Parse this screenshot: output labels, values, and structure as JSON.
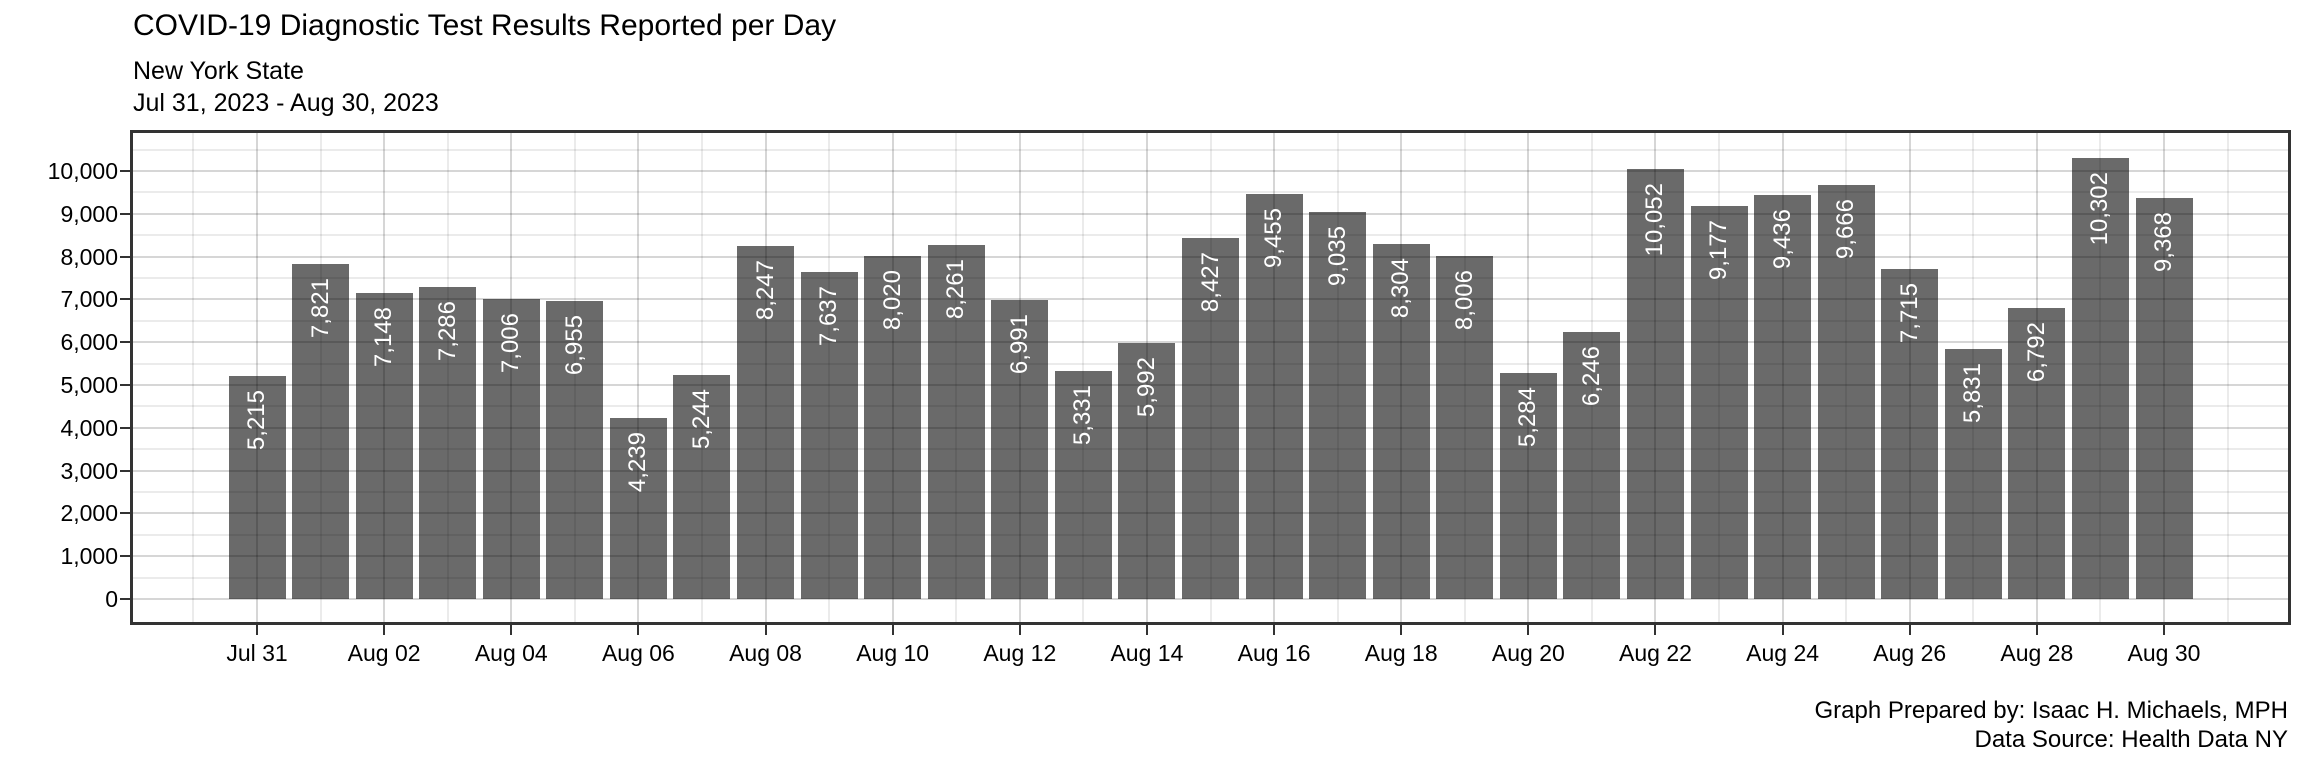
{
  "header": {
    "title": "COVID-19 Diagnostic Test Results Reported per Day",
    "subtitle": "New York State",
    "date_range": "Jul 31, 2023 - Aug 30, 2023"
  },
  "caption": {
    "prepared_by": "Graph Prepared by: Isaac H. Michaels, MPH",
    "data_source": "Data Source: Health Data NY"
  },
  "chart_data": {
    "type": "bar",
    "title": "COVID-19 Diagnostic Test Results Reported per Day",
    "subtitle": "New York State",
    "date_range_label": "Jul 31, 2023 - Aug 30, 2023",
    "xlabel": "",
    "ylabel": "",
    "categories": [
      "Jul 31",
      "Aug 01",
      "Aug 02",
      "Aug 03",
      "Aug 04",
      "Aug 05",
      "Aug 06",
      "Aug 07",
      "Aug 08",
      "Aug 09",
      "Aug 10",
      "Aug 11",
      "Aug 12",
      "Aug 13",
      "Aug 14",
      "Aug 15",
      "Aug 16",
      "Aug 17",
      "Aug 18",
      "Aug 19",
      "Aug 20",
      "Aug 21",
      "Aug 22",
      "Aug 23",
      "Aug 24",
      "Aug 25",
      "Aug 26",
      "Aug 27",
      "Aug 28",
      "Aug 29",
      "Aug 30"
    ],
    "values": [
      5215,
      7821,
      7148,
      7286,
      7006,
      6955,
      4239,
      5244,
      8247,
      7637,
      8020,
      8261,
      6991,
      5331,
      5992,
      8427,
      9455,
      9035,
      8304,
      8006,
      5284,
      6246,
      10052,
      9177,
      9436,
      9666,
      7715,
      5831,
      6792,
      10302,
      9368
    ],
    "bar_value_labels": [
      "5,215",
      "7,821",
      "7,148",
      "7,286",
      "7,006",
      "6,955",
      "4,239",
      "5,244",
      "8,247",
      "7,637",
      "8,020",
      "8,261",
      "6,991",
      "5,331",
      "5,992",
      "8,427",
      "9,455",
      "9,035",
      "8,304",
      "8,006",
      "5,284",
      "6,246",
      "10,052",
      "9,177",
      "9,436",
      "9,666",
      "7,715",
      "5,831",
      "6,792",
      "10,302",
      "9,368"
    ],
    "x_tick_labels": [
      "Jul 31",
      "Aug 02",
      "Aug 04",
      "Aug 06",
      "Aug 08",
      "Aug 10",
      "Aug 12",
      "Aug 14",
      "Aug 16",
      "Aug 18",
      "Aug 20",
      "Aug 22",
      "Aug 24",
      "Aug 26",
      "Aug 28",
      "Aug 30"
    ],
    "x_tick_day_indices": [
      0,
      2,
      4,
      6,
      8,
      10,
      12,
      14,
      16,
      18,
      20,
      22,
      24,
      26,
      28,
      30
    ],
    "y_ticks": [
      0,
      1000,
      2000,
      3000,
      4000,
      5000,
      6000,
      7000,
      8000,
      9000,
      10000
    ],
    "y_tick_labels": [
      "0",
      "1,000",
      "2,000",
      "3,000",
      "4,000",
      "5,000",
      "6,000",
      "7,000",
      "8,000",
      "9,000",
      "10,000"
    ],
    "ylim": [
      0,
      10000
    ],
    "grid": {
      "major": true,
      "minor": true
    },
    "legend_position": "none",
    "colors": {
      "bar_fill": "#6a6a6a",
      "bar_label": "#ffffff",
      "panel_border": "#333333",
      "panel_background": "#ffffff",
      "axis_text": "#000000"
    }
  }
}
